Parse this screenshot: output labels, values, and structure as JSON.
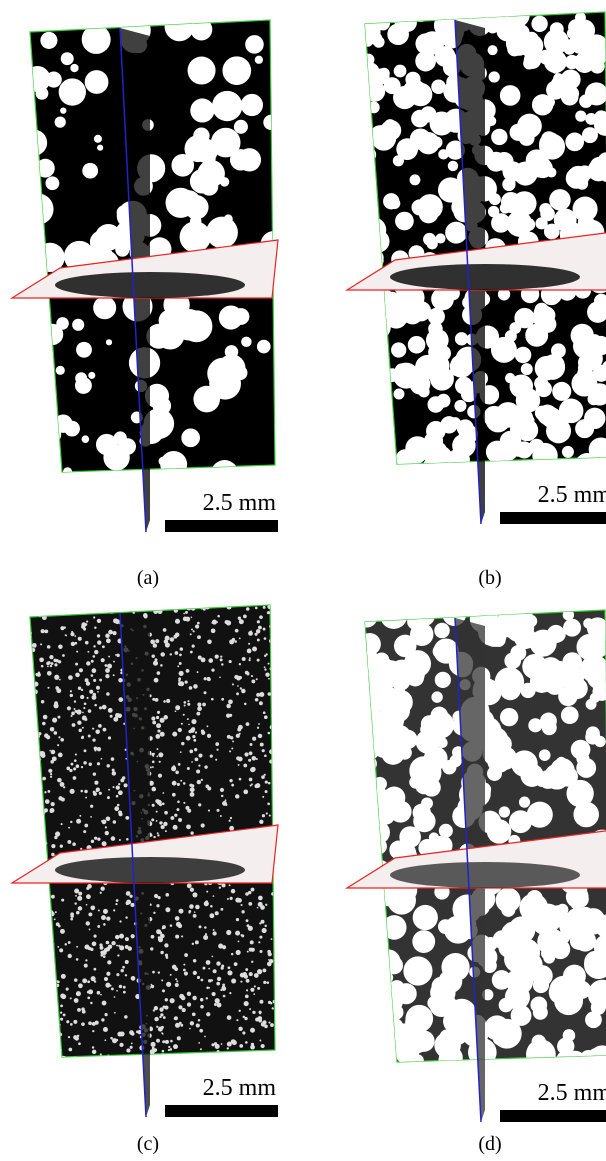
{
  "panels": [
    {
      "label": "(a)",
      "scale_bar": "2.5 mm"
    },
    {
      "label": "(b)",
      "scale_bar": "2.5 mm"
    },
    {
      "label": "(c)",
      "scale_bar": "2.5 mm"
    },
    {
      "label": "(d)",
      "scale_bar": "2.5 mm"
    }
  ]
}
